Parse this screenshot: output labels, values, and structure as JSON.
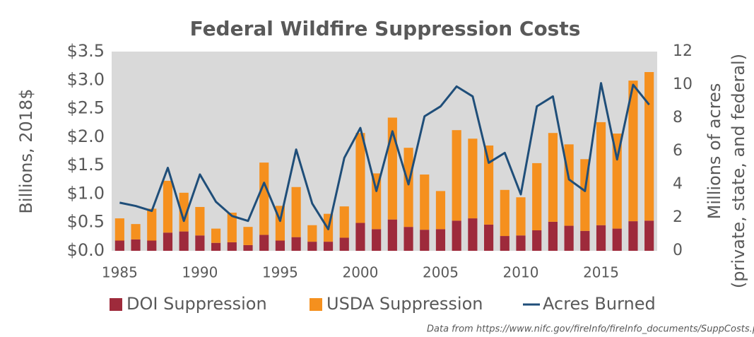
{
  "chart_data": {
    "type": "bar",
    "title": "Federal Wildfire Suppression Costs",
    "ylabel": "Billions, 2018$",
    "y2label": [
      "Millions of acres",
      "(private, state, and federal)"
    ],
    "source": "Data from https://www.nifc.gov/fireInfo/fireInfo_documents/SuppCosts.pdf",
    "stacked": true,
    "x": [
      1985,
      1986,
      1987,
      1988,
      1989,
      1990,
      1991,
      1992,
      1993,
      1994,
      1995,
      1996,
      1997,
      1998,
      1999,
      2000,
      2001,
      2002,
      2003,
      2004,
      2005,
      2006,
      2007,
      2008,
      2009,
      2010,
      2011,
      2012,
      2013,
      2014,
      2015,
      2016,
      2017,
      2018
    ],
    "xlim": [
      1984.5,
      2018.5
    ],
    "xticks": [
      1985,
      1990,
      1995,
      2000,
      2005,
      2010,
      2015
    ],
    "ylim": [
      0,
      3.5
    ],
    "yticks": [
      {
        "value": 0,
        "label": "$0.0"
      },
      {
        "value": 0.5,
        "label": "$0.5"
      },
      {
        "value": 1,
        "label": "$1.0"
      },
      {
        "value": 1.5,
        "label": "$1.5"
      },
      {
        "value": 2,
        "label": "$2.0"
      },
      {
        "value": 2.5,
        "label": "$2.5"
      },
      {
        "value": 3,
        "label": "$3.0"
      },
      {
        "value": 3.5,
        "label": "$3.5"
      }
    ],
    "y2lim": [
      0,
      12
    ],
    "y2ticks": [
      0,
      2,
      4,
      6,
      8,
      10,
      12
    ],
    "grid": false,
    "legend": "bottom",
    "series": [
      {
        "name": "DOI Suppression",
        "color": "#9e2a3b",
        "type": "bar",
        "values": [
          0.18,
          0.2,
          0.18,
          0.32,
          0.34,
          0.27,
          0.14,
          0.15,
          0.1,
          0.28,
          0.18,
          0.24,
          0.16,
          0.16,
          0.23,
          0.49,
          0.38,
          0.55,
          0.42,
          0.37,
          0.38,
          0.53,
          0.57,
          0.46,
          0.26,
          0.27,
          0.36,
          0.51,
          0.44,
          0.35,
          0.45,
          0.39,
          0.52,
          0.53
        ]
      },
      {
        "name": "USDA Suppression",
        "color": "#f5901e",
        "type": "bar",
        "values": [
          0.39,
          0.27,
          0.56,
          0.91,
          0.68,
          0.5,
          0.25,
          0.52,
          0.32,
          1.27,
          0.61,
          0.88,
          0.29,
          0.49,
          0.55,
          1.58,
          0.98,
          1.79,
          1.39,
          0.97,
          0.67,
          1.59,
          1.4,
          1.39,
          0.81,
          0.67,
          1.18,
          1.56,
          1.43,
          1.26,
          1.81,
          1.67,
          2.47,
          2.61
        ]
      },
      {
        "name": "Acres Burned",
        "color": "#1f4e79",
        "type": "line",
        "axis": "y2",
        "values": [
          2.9,
          2.7,
          2.4,
          5.0,
          1.8,
          4.6,
          2.95,
          2.1,
          1.8,
          4.1,
          1.8,
          6.1,
          2.85,
          1.3,
          5.6,
          7.4,
          3.6,
          7.2,
          4.0,
          8.1,
          8.7,
          9.9,
          9.3,
          5.3,
          5.9,
          3.4,
          8.7,
          9.3,
          4.3,
          3.6,
          10.1,
          5.5,
          10.0,
          8.8
        ]
      }
    ]
  }
}
